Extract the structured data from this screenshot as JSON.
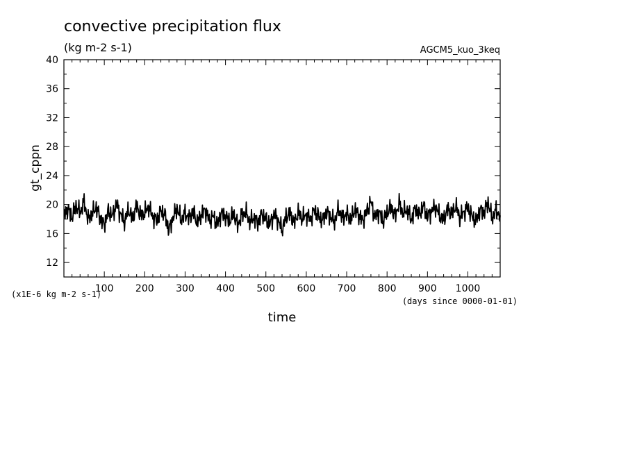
{
  "chart_data": {
    "type": "line",
    "title": "convective precipitation flux",
    "units": "(kg m-2 s-1)",
    "experiment": "AGCM5_kuo_3keq",
    "ylabel": "gt_cppn",
    "xlabel": "time",
    "yscale_note": "(x1E-6 kg m-2 s-1)",
    "xunits_note": "(days since 0000-01-01)",
    "xlim": [
      0,
      1080
    ],
    "ylim": [
      10,
      40
    ],
    "x_ticks": [
      100,
      200,
      300,
      400,
      500,
      600,
      700,
      800,
      900,
      1000
    ],
    "x_tick_labels": [
      "100",
      "200",
      "300",
      "400",
      "500",
      "600",
      "700",
      "800",
      "900",
      "1000"
    ],
    "y_ticks": [
      12,
      16,
      20,
      24,
      28,
      32,
      36,
      40
    ],
    "y_tick_labels": [
      "12",
      "16",
      "20",
      "24",
      "28",
      "32",
      "36",
      "40"
    ],
    "line_color": "#000000",
    "series": [
      {
        "x": [
          0,
          10,
          20,
          30,
          40,
          50,
          60,
          70,
          80,
          90,
          100,
          110,
          120,
          130,
          140,
          150,
          160,
          170,
          180,
          190,
          200,
          210,
          220,
          230,
          240,
          250,
          260,
          270,
          280,
          290,
          300,
          310,
          320,
          330,
          340,
          350,
          360,
          370,
          380,
          390,
          400,
          410,
          420,
          430,
          440,
          450,
          460,
          470,
          480,
          490,
          500,
          510,
          520,
          530,
          540,
          550,
          560,
          570,
          580,
          590,
          600,
          610,
          620,
          630,
          640,
          650,
          660,
          670,
          680,
          690,
          700,
          710,
          720,
          730,
          740,
          750,
          760,
          770,
          780,
          790,
          800,
          810,
          820,
          830,
          840,
          850,
          860,
          870,
          880,
          890,
          900,
          910,
          920,
          930,
          940,
          950,
          960,
          970,
          980,
          990,
          1000,
          1010,
          1020,
          1030,
          1040,
          1050,
          1060,
          1070,
          1080
        ],
        "values": [
          18.6,
          19.4,
          18.2,
          19.8,
          18.9,
          20.4,
          17.9,
          18.8,
          19.6,
          18.1,
          17.2,
          19.1,
          18.4,
          20.1,
          18.7,
          17.6,
          19.3,
          18.0,
          19.9,
          18.5,
          18.9,
          19.7,
          18.3,
          17.8,
          19.2,
          18.6,
          16.4,
          18.2,
          19.5,
          17.9,
          18.8,
          18.1,
          19.0,
          17.5,
          18.6,
          19.3,
          17.8,
          18.4,
          17.2,
          18.9,
          18.3,
          17.7,
          18.8,
          17.1,
          18.5,
          19.0,
          17.6,
          18.2,
          17.4,
          18.7,
          18.0,
          17.3,
          18.6,
          17.9,
          16.5,
          18.3,
          18.8,
          17.4,
          18.9,
          18.1,
          18.6,
          17.9,
          19.2,
          18.4,
          17.8,
          19.0,
          18.3,
          17.6,
          19.4,
          18.1,
          18.7,
          17.9,
          19.3,
          18.5,
          17.8,
          19.1,
          20.4,
          18.2,
          19.0,
          17.7,
          18.9,
          19.6,
          18.4,
          20.2,
          18.8,
          19.3,
          17.9,
          19.5,
          18.6,
          19.9,
          18.3,
          19.1,
          19.7,
          18.5,
          17.9,
          19.4,
          18.7,
          19.8,
          18.2,
          19.0,
          19.6,
          18.4,
          17.7,
          19.3,
          18.9,
          20.3,
          18.1,
          19.2,
          18.5
        ]
      }
    ]
  }
}
